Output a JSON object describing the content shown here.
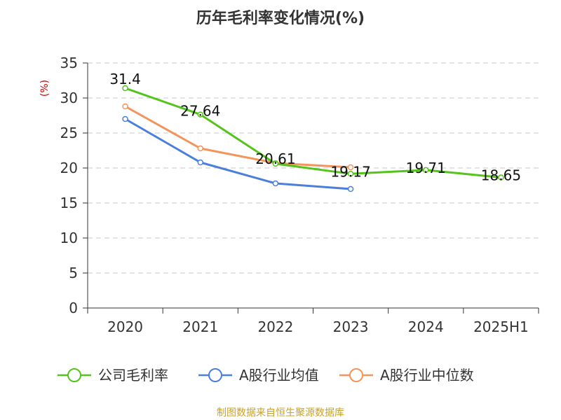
{
  "chart_data": {
    "type": "line",
    "title": "历年毛利率变化情况(%)",
    "ylabel": "(%)",
    "xlabel": "",
    "categories": [
      "2020",
      "2021",
      "2022",
      "2023",
      "2024",
      "2025H1"
    ],
    "ylim": [
      0,
      35
    ],
    "yticks": [
      "0",
      "5",
      "10",
      "15",
      "20",
      "25",
      "30",
      "35"
    ],
    "grid": true,
    "legend_position": "bottom",
    "series": [
      {
        "name": "公司毛利率",
        "color": "#52c41a",
        "values": [
          31.4,
          27.64,
          20.61,
          19.17,
          19.71,
          18.65
        ],
        "labels": [
          "31.4",
          "27.64",
          "20.61",
          "19.17",
          "19.71",
          "18.65"
        ]
      },
      {
        "name": "A股行业均值",
        "color": "#4a7fdc",
        "values": [
          27.0,
          20.8,
          17.8,
          17.0,
          null,
          null
        ]
      },
      {
        "name": "A股行业中位数",
        "color": "#f4935a",
        "values": [
          28.8,
          22.8,
          20.7,
          20.1,
          null,
          null
        ]
      }
    ],
    "source": "制图数据来自恒生聚源数据库"
  }
}
